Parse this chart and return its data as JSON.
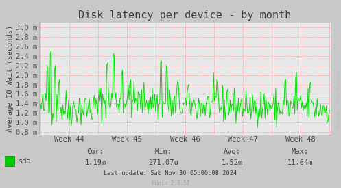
{
  "title": "Disk latency per device - by month",
  "ylabel": "Average IO Wait (seconds)",
  "bg_color": "#c8c8c8",
  "plot_bg_color": "#e8e8e8",
  "line_color": "#00e000",
  "grid_color": "#ff8080",
  "ytick_labels": [
    "0.8 m",
    "1.0 m",
    "1.2 m",
    "1.4 m",
    "1.6 m",
    "1.8 m",
    "2.0 m",
    "2.2 m",
    "2.4 m",
    "2.6 m",
    "2.8 m",
    "3.0 m"
  ],
  "ytick_values": [
    0.8,
    1.0,
    1.2,
    1.4,
    1.6,
    1.8,
    2.0,
    2.2,
    2.4,
    2.6,
    2.8,
    3.0
  ],
  "ylim": [
    0.75,
    3.1
  ],
  "xtick_labels": [
    "Week 44",
    "Week 45",
    "Week 46",
    "Week 47",
    "Week 48"
  ],
  "legend_label": "sda",
  "legend_color": "#00cc00",
  "stats_cur": "1.19m",
  "stats_min": "271.07u",
  "stats_avg": "1.52m",
  "stats_max": "11.64m",
  "last_update": "Last update: Sat Nov 30 05:00:08 2024",
  "munin_version": "Munin 2.0.57",
  "watermark": "RRDTOOL / TOBI OETIKER",
  "title_fontsize": 11,
  "axis_label_fontsize": 7.5,
  "tick_fontsize": 7.5,
  "stats_fontsize": 7.5
}
